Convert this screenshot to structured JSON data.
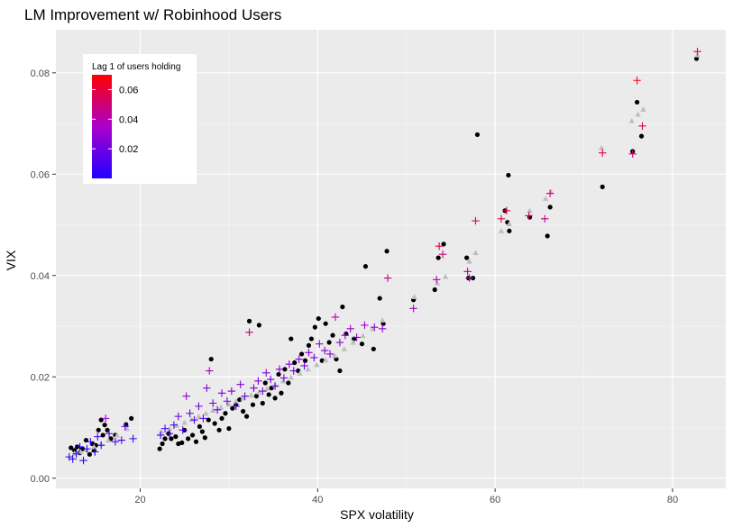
{
  "chart_data": {
    "type": "scatter",
    "title": "LM Improvement w/ Robinhood Users",
    "xlabel": "SPX volatility",
    "ylabel": "VIX",
    "xlim": [
      10.5,
      86
    ],
    "ylim": [
      -0.002,
      0.0885
    ],
    "x_ticks": [
      20,
      40,
      60,
      80
    ],
    "x_tick_labels": [
      "20",
      "40",
      "60",
      "80"
    ],
    "y_ticks": [
      0.0,
      0.02,
      0.04,
      0.06,
      0.08
    ],
    "y_tick_labels": [
      "0.00",
      "0.02",
      "0.04",
      "0.06",
      "0.08"
    ],
    "grid": true,
    "legend": {
      "title": "Lag 1 of users holding",
      "type": "colorbar",
      "placement": "top-left",
      "range": [
        0.0,
        0.07
      ],
      "ticks": [
        0.02,
        0.04,
        0.06
      ],
      "tick_labels": [
        "0.02",
        "0.04",
        "0.06"
      ],
      "low_color": "#2200ff",
      "mid_color": "#aa00cc",
      "high_color": "#ff0000"
    },
    "colors": {
      "panel_bg": "#ebebeb",
      "grid_major": "#ffffff",
      "observed": "#000000",
      "baseline_fit": "#bebebe"
    },
    "series": [
      {
        "name": "",
        "marker": "circle",
        "color": "#000000",
        "points": [
          [
            12.2,
            0.006
          ],
          [
            12.6,
            0.0055
          ],
          [
            12.9,
            0.0062
          ],
          [
            13.5,
            0.0058
          ],
          [
            13.9,
            0.0075
          ],
          [
            14.3,
            0.0047
          ],
          [
            14.6,
            0.0068
          ],
          [
            15.0,
            0.0065
          ],
          [
            15.3,
            0.0095
          ],
          [
            15.6,
            0.0115
          ],
          [
            15.8,
            0.0085
          ],
          [
            16.0,
            0.0105
          ],
          [
            16.3,
            0.0095
          ],
          [
            16.7,
            0.0078
          ],
          [
            17.2,
            0.0085
          ],
          [
            18.4,
            0.0106
          ],
          [
            19.0,
            0.0118
          ],
          [
            14.8,
            0.0055
          ],
          [
            13.2,
            0.005
          ],
          [
            22.2,
            0.0058
          ],
          [
            22.5,
            0.0068
          ],
          [
            22.8,
            0.0078
          ],
          [
            23.2,
            0.0088
          ],
          [
            23.5,
            0.0078
          ],
          [
            24.0,
            0.0082
          ],
          [
            24.3,
            0.0068
          ],
          [
            24.7,
            0.007
          ],
          [
            25.0,
            0.0095
          ],
          [
            25.4,
            0.0078
          ],
          [
            25.9,
            0.0085
          ],
          [
            26.3,
            0.0072
          ],
          [
            26.7,
            0.0102
          ],
          [
            27.0,
            0.0092
          ],
          [
            27.3,
            0.008
          ],
          [
            27.7,
            0.0115
          ],
          [
            28.0,
            0.0235
          ],
          [
            28.4,
            0.0108
          ],
          [
            28.9,
            0.0095
          ],
          [
            29.2,
            0.0118
          ],
          [
            29.6,
            0.0128
          ],
          [
            30.0,
            0.0098
          ],
          [
            30.4,
            0.0138
          ],
          [
            30.8,
            0.0145
          ],
          [
            31.2,
            0.0155
          ],
          [
            31.6,
            0.0132
          ],
          [
            32.0,
            0.0122
          ],
          [
            32.3,
            0.031
          ],
          [
            32.7,
            0.0145
          ],
          [
            33.1,
            0.0162
          ],
          [
            33.4,
            0.0302
          ],
          [
            33.8,
            0.0148
          ],
          [
            34.1,
            0.0188
          ],
          [
            34.5,
            0.0165
          ],
          [
            34.8,
            0.0178
          ],
          [
            35.2,
            0.0158
          ],
          [
            35.6,
            0.0205
          ],
          [
            35.9,
            0.0168
          ],
          [
            36.3,
            0.0215
          ],
          [
            36.7,
            0.0188
          ],
          [
            37.0,
            0.0275
          ],
          [
            37.4,
            0.0228
          ],
          [
            37.8,
            0.0212
          ],
          [
            38.2,
            0.0245
          ],
          [
            38.6,
            0.0232
          ],
          [
            39.0,
            0.0262
          ],
          [
            39.3,
            0.0275
          ],
          [
            39.7,
            0.0298
          ],
          [
            40.1,
            0.0315
          ],
          [
            40.5,
            0.0232
          ],
          [
            40.9,
            0.0305
          ],
          [
            41.3,
            0.0268
          ],
          [
            41.7,
            0.0282
          ],
          [
            42.1,
            0.0235
          ],
          [
            42.5,
            0.0212
          ],
          [
            42.8,
            0.0338
          ],
          [
            43.2,
            0.0285
          ],
          [
            44.1,
            0.0275
          ],
          [
            45.0,
            0.0265
          ],
          [
            45.4,
            0.0418
          ],
          [
            46.3,
            0.0255
          ],
          [
            47.0,
            0.0355
          ],
          [
            47.4,
            0.0305
          ],
          [
            47.8,
            0.0448
          ],
          [
            50.8,
            0.0352
          ],
          [
            53.2,
            0.0372
          ],
          [
            53.6,
            0.0435
          ],
          [
            54.2,
            0.0462
          ],
          [
            56.8,
            0.0435
          ],
          [
            57.0,
            0.0395
          ],
          [
            57.5,
            0.0395
          ],
          [
            58.0,
            0.0678
          ],
          [
            61.1,
            0.0528
          ],
          [
            61.4,
            0.0505
          ],
          [
            61.5,
            0.0598
          ],
          [
            61.6,
            0.0488
          ],
          [
            63.9,
            0.0515
          ],
          [
            65.9,
            0.0478
          ],
          [
            66.2,
            0.0535
          ],
          [
            72.1,
            0.0575
          ],
          [
            75.5,
            0.0645
          ],
          [
            76.0,
            0.0742
          ],
          [
            76.5,
            0.0675
          ],
          [
            82.7,
            0.0828
          ]
        ]
      },
      {
        "name": "",
        "marker": "triangle",
        "color": "#bebebe",
        "points": [
          [
            12.6,
            0.0049
          ],
          [
            13.3,
            0.0052
          ],
          [
            14.0,
            0.0056
          ],
          [
            14.8,
            0.0062
          ],
          [
            15.6,
            0.0068
          ],
          [
            16.4,
            0.0075
          ],
          [
            17.4,
            0.0085
          ],
          [
            18.5,
            0.0098
          ],
          [
            22.4,
            0.0092
          ],
          [
            23.3,
            0.0098
          ],
          [
            24.1,
            0.0104
          ],
          [
            25.0,
            0.011
          ],
          [
            25.8,
            0.0116
          ],
          [
            26.6,
            0.0122
          ],
          [
            27.4,
            0.0128
          ],
          [
            28.2,
            0.0134
          ],
          [
            29.1,
            0.014
          ],
          [
            30.0,
            0.0146
          ],
          [
            30.8,
            0.0152
          ],
          [
            31.6,
            0.0158
          ],
          [
            32.5,
            0.0164
          ],
          [
            33.4,
            0.017
          ],
          [
            34.3,
            0.0177
          ],
          [
            35.2,
            0.0184
          ],
          [
            36.1,
            0.0192
          ],
          [
            37.0,
            0.0199
          ],
          [
            38.0,
            0.0207
          ],
          [
            38.9,
            0.0215
          ],
          [
            39.9,
            0.0224
          ],
          [
            40.9,
            0.0233
          ],
          [
            41.9,
            0.0242
          ],
          [
            43.0,
            0.0255
          ],
          [
            44.0,
            0.0268
          ],
          [
            45.1,
            0.0281
          ],
          [
            46.2,
            0.0295
          ],
          [
            47.3,
            0.0312
          ],
          [
            50.9,
            0.0358
          ],
          [
            53.5,
            0.0385
          ],
          [
            54.4,
            0.0398
          ],
          [
            57.1,
            0.0428
          ],
          [
            57.8,
            0.0445
          ],
          [
            60.7,
            0.0488
          ],
          [
            61.6,
            0.0502
          ],
          [
            63.9,
            0.0528
          ],
          [
            65.7,
            0.0552
          ],
          [
            66.3,
            0.0565
          ],
          [
            72.0,
            0.0652
          ],
          [
            75.4,
            0.0705
          ],
          [
            76.1,
            0.0718
          ],
          [
            76.7,
            0.0728
          ],
          [
            82.8,
            0.0835
          ]
        ]
      },
      {
        "name": "",
        "marker": "plus",
        "color_by": "legend",
        "points": [
          [
            12.0,
            0.0042,
            0.002
          ],
          [
            12.4,
            0.0038,
            0.003
          ],
          [
            12.8,
            0.0048,
            0.004
          ],
          [
            13.2,
            0.0062,
            0.004
          ],
          [
            13.6,
            0.0035,
            0.002
          ],
          [
            14.0,
            0.0058,
            0.005
          ],
          [
            14.4,
            0.0072,
            0.008
          ],
          [
            14.9,
            0.0052,
            0.005
          ],
          [
            15.2,
            0.0082,
            0.012
          ],
          [
            15.6,
            0.0065,
            0.007
          ],
          [
            16.1,
            0.0118,
            0.03
          ],
          [
            16.5,
            0.0088,
            0.012
          ],
          [
            17.2,
            0.0072,
            0.008
          ],
          [
            17.9,
            0.0075,
            0.009
          ],
          [
            18.3,
            0.0102,
            0.017
          ],
          [
            19.2,
            0.0078,
            0.006
          ],
          [
            22.3,
            0.0085,
            0.006
          ],
          [
            22.8,
            0.0098,
            0.01
          ],
          [
            23.3,
            0.0088,
            0.008
          ],
          [
            23.8,
            0.0105,
            0.012
          ],
          [
            24.3,
            0.0122,
            0.018
          ],
          [
            24.8,
            0.0095,
            0.01
          ],
          [
            25.2,
            0.0162,
            0.028
          ],
          [
            25.6,
            0.0128,
            0.017
          ],
          [
            26.1,
            0.0115,
            0.012
          ],
          [
            26.6,
            0.0142,
            0.02
          ],
          [
            27.1,
            0.0118,
            0.013
          ],
          [
            27.5,
            0.0178,
            0.026
          ],
          [
            27.8,
            0.0212,
            0.038
          ],
          [
            28.2,
            0.0148,
            0.02
          ],
          [
            28.7,
            0.0135,
            0.015
          ],
          [
            29.2,
            0.0168,
            0.024
          ],
          [
            29.8,
            0.0152,
            0.018
          ],
          [
            30.3,
            0.0172,
            0.022
          ],
          [
            30.8,
            0.0142,
            0.015
          ],
          [
            31.3,
            0.0185,
            0.025
          ],
          [
            31.8,
            0.0162,
            0.018
          ],
          [
            32.3,
            0.0288,
            0.05
          ],
          [
            32.8,
            0.0178,
            0.021
          ],
          [
            33.3,
            0.0192,
            0.024
          ],
          [
            33.8,
            0.0172,
            0.018
          ],
          [
            34.2,
            0.0208,
            0.028
          ],
          [
            34.7,
            0.0195,
            0.022
          ],
          [
            35.2,
            0.0182,
            0.019
          ],
          [
            35.7,
            0.0215,
            0.025
          ],
          [
            36.2,
            0.0198,
            0.02
          ],
          [
            36.8,
            0.0225,
            0.026
          ],
          [
            37.3,
            0.0212,
            0.022
          ],
          [
            37.9,
            0.0235,
            0.027
          ],
          [
            38.5,
            0.0222,
            0.023
          ],
          [
            39.0,
            0.0248,
            0.028
          ],
          [
            39.6,
            0.0238,
            0.024
          ],
          [
            40.2,
            0.0265,
            0.03
          ],
          [
            40.8,
            0.0252,
            0.026
          ],
          [
            41.4,
            0.0245,
            0.024
          ],
          [
            42.0,
            0.0318,
            0.045
          ],
          [
            42.5,
            0.0268,
            0.028
          ],
          [
            43.1,
            0.0282,
            0.03
          ],
          [
            43.7,
            0.0295,
            0.032
          ],
          [
            44.4,
            0.0278,
            0.027
          ],
          [
            45.3,
            0.0302,
            0.033
          ],
          [
            46.4,
            0.0298,
            0.03
          ],
          [
            47.3,
            0.0295,
            0.03
          ],
          [
            47.9,
            0.0395,
            0.045
          ],
          [
            50.8,
            0.0335,
            0.035
          ],
          [
            53.4,
            0.0392,
            0.04
          ],
          [
            53.7,
            0.0458,
            0.058
          ],
          [
            54.1,
            0.0442,
            0.05
          ],
          [
            56.9,
            0.0408,
            0.04
          ],
          [
            57.1,
            0.0395,
            0.04
          ],
          [
            57.8,
            0.0508,
            0.055
          ],
          [
            60.7,
            0.0512,
            0.055
          ],
          [
            61.3,
            0.0528,
            0.058
          ],
          [
            63.8,
            0.0518,
            0.055
          ],
          [
            65.6,
            0.0512,
            0.045
          ],
          [
            66.2,
            0.0562,
            0.05
          ],
          [
            72.1,
            0.0642,
            0.06
          ],
          [
            75.5,
            0.064,
            0.05
          ],
          [
            76.0,
            0.0785,
            0.068
          ],
          [
            76.6,
            0.0695,
            0.058
          ],
          [
            82.8,
            0.0842,
            0.065
          ]
        ]
      }
    ]
  }
}
